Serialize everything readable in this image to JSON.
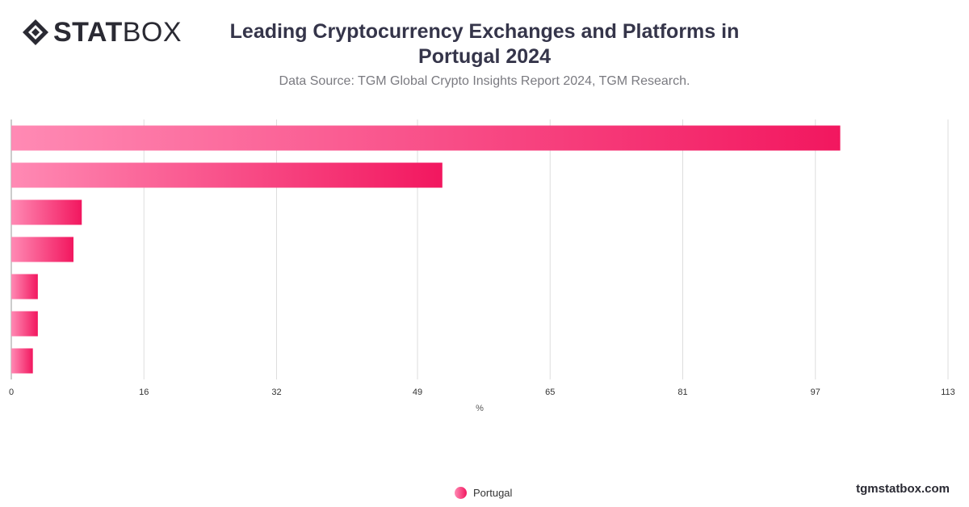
{
  "brand": {
    "logo_bold": "STAT",
    "logo_light": "BOX",
    "logo_icon": "diamond-logo-icon",
    "website": "tgmstatbox.com"
  },
  "header": {
    "title": "Leading Cryptocurrency Exchanges and Platforms in Portugal 2024",
    "subtitle": "Data Source: TGM Global Crypto Insights Report 2024, TGM Research."
  },
  "colors": {
    "bar_start": "#ff8ab4",
    "bar_end": "#f2175f",
    "grid": "#dddddd",
    "title": "#35354a",
    "subtitle": "#7a7a80"
  },
  "chart_data": {
    "type": "bar",
    "orientation": "horizontal",
    "categories": [
      "",
      "",
      "",
      "",
      "",
      "",
      ""
    ],
    "series": [
      {
        "name": "Portugal",
        "values": [
          100,
          52,
          8.5,
          7.5,
          3.2,
          3.2,
          2.6
        ]
      }
    ],
    "xlabel": "%",
    "ylabel": "",
    "xlim": [
      0,
      113
    ],
    "xticks": [
      0,
      16,
      32,
      49,
      65,
      81,
      97,
      113
    ],
    "grid": true,
    "legend": "bottom-center"
  }
}
